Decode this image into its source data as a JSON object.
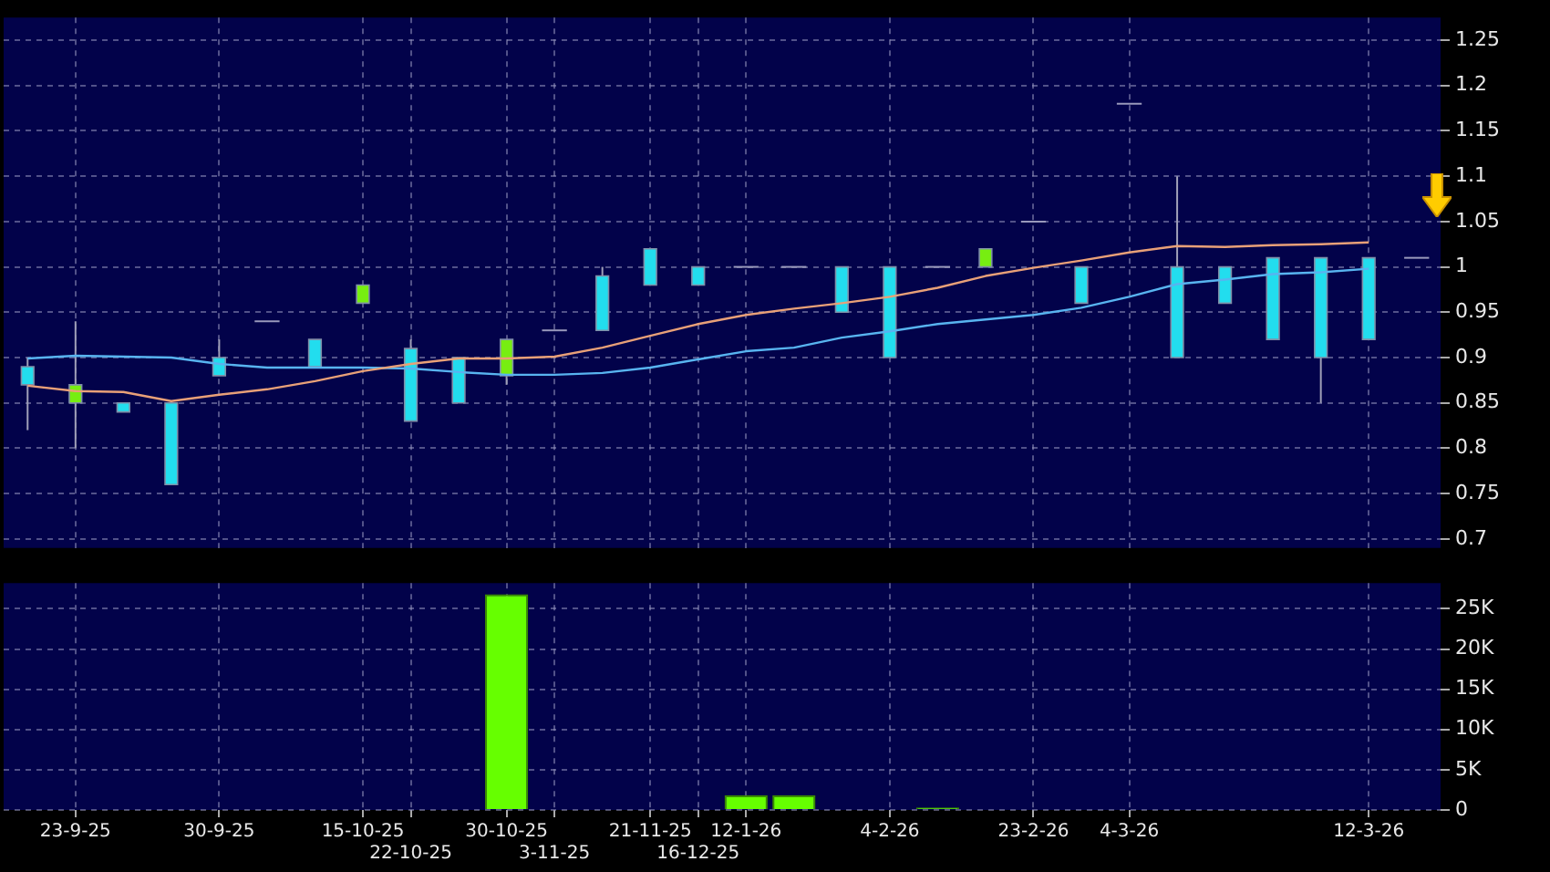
{
  "chart_data": [
    {
      "type": "candlestick",
      "categories": [
        null,
        null,
        null,
        null,
        null,
        null,
        null,
        null,
        null,
        null,
        null,
        null,
        null,
        null,
        null,
        null,
        null,
        null,
        null,
        null,
        null,
        null,
        null,
        null,
        null,
        null,
        null,
        null,
        null,
        null
      ],
      "ohlc": [
        [
          0.89,
          0.9,
          0.82,
          0.87
        ],
        [
          0.85,
          0.94,
          0.8,
          0.87
        ],
        [
          0.85,
          0.85,
          0.84,
          0.84
        ],
        [
          0.85,
          0.85,
          0.76,
          0.76
        ],
        [
          0.9,
          0.92,
          0.88,
          0.88
        ],
        [
          0.94,
          0.94,
          0.94,
          0.94
        ],
        [
          0.92,
          0.92,
          0.89,
          0.89
        ],
        [
          0.96,
          0.98,
          0.96,
          0.98
        ],
        [
          0.91,
          0.92,
          0.83,
          0.83
        ],
        [
          0.9,
          0.9,
          0.85,
          0.85
        ],
        [
          0.88,
          0.92,
          0.87,
          0.92
        ],
        [
          0.93,
          0.93,
          0.93,
          0.93
        ],
        [
          0.99,
          1.0,
          0.93,
          0.93
        ],
        [
          1.02,
          1.02,
          0.98,
          0.98
        ],
        [
          1.0,
          1.0,
          0.98,
          0.98
        ],
        [
          1.0,
          1.0,
          1.0,
          1.0
        ],
        [
          1.0,
          1.0,
          1.0,
          1.0
        ],
        [
          1.0,
          1.0,
          0.95,
          0.95
        ],
        [
          1.0,
          1.0,
          0.9,
          0.9
        ],
        [
          1.0,
          1.0,
          1.0,
          1.0
        ],
        [
          1.0,
          1.02,
          1.0,
          1.02
        ],
        [
          1.05,
          1.05,
          1.05,
          1.05
        ],
        [
          1.0,
          1.0,
          0.96,
          0.96
        ],
        [
          1.18,
          1.18,
          1.18,
          1.18
        ],
        [
          1.0,
          1.1,
          0.9,
          0.9
        ],
        [
          1.0,
          1.0,
          0.96,
          0.96
        ],
        [
          1.01,
          1.01,
          0.92,
          0.92
        ],
        [
          1.01,
          1.01,
          0.85,
          0.9
        ],
        [
          1.01,
          1.01,
          0.92,
          0.92
        ],
        [
          1.01,
          1.01,
          1.01,
          1.01
        ]
      ],
      "colors": [
        "#22ddee",
        "#77ee11",
        "#22ddee",
        "#22ddee",
        "#22ddee",
        "#9999bb",
        "#22ddee",
        "#77ee11",
        "#22ddee",
        "#22ddee",
        "#77ee11",
        "#9999bb",
        "#22ddee",
        "#22ddee",
        "#22ddee",
        "#9999bb",
        "#9999bb",
        "#22ddee",
        "#22ddee",
        "#9999bb",
        "#77ee11",
        "#9999bb",
        "#22ddee",
        "#9999bb",
        "#22ddee",
        "#22ddee",
        "#22ddee",
        "#22ddee",
        "#22ddee",
        "#9999bb"
      ],
      "series": [
        {
          "type": "line",
          "color": "#e8a078",
          "values": [
            0.869,
            0.863,
            0.862,
            0.852,
            0.859,
            0.865,
            0.874,
            0.885,
            0.893,
            0.899,
            0.899,
            0.901,
            0.911,
            0.924,
            0.937,
            0.947,
            0.954,
            0.96,
            0.967,
            0.977,
            0.99,
            0.999,
            1.007,
            1.016,
            1.023,
            1.022,
            1.024,
            1.025,
            1.027,
            null
          ]
        },
        {
          "type": "line",
          "color": "#58b4f0",
          "values": [
            0.899,
            0.902,
            0.901,
            0.9,
            0.893,
            0.889,
            0.889,
            0.889,
            0.888,
            0.884,
            0.881,
            0.881,
            0.883,
            0.889,
            0.898,
            0.907,
            0.911,
            0.922,
            0.929,
            0.937,
            0.942,
            0.947,
            0.955,
            0.967,
            0.981,
            0.986,
            0.992,
            0.994,
            0.998,
            null
          ]
        }
      ],
      "ylim": [
        0.69,
        1.275
      ],
      "yticks": [
        0.7,
        0.75,
        0.8,
        0.85,
        0.9,
        0.95,
        1,
        1.05,
        1.1,
        1.15,
        1.2,
        1.25
      ],
      "grid": true,
      "tick_labels": "y"
    },
    {
      "type": "bar",
      "categories": [
        null,
        "23-9-25",
        null,
        null,
        "30-9-25",
        null,
        null,
        "15-10-25",
        "22-10-25",
        null,
        "30-10-25",
        "3-11-25",
        null,
        "21-11-25",
        "16-12-25",
        "12-1-26",
        null,
        null,
        "4-2-26",
        null,
        null,
        "23-2-26",
        null,
        "4-3-26",
        null,
        null,
        null,
        null,
        "12-3-26",
        null
      ],
      "values": [
        0,
        100,
        0,
        0,
        0,
        0,
        0,
        0,
        100,
        0,
        26800,
        0,
        0,
        100,
        0,
        1800,
        1800,
        0,
        0,
        300,
        0,
        0,
        100,
        0,
        0,
        0,
        0,
        0,
        0,
        0
      ],
      "color": "#66ff00",
      "ylim": [
        0,
        28200
      ],
      "yticks": [
        0,
        {
          "value": 5000,
          "label": "5K"
        },
        {
          "value": 10000,
          "label": "10K"
        },
        {
          "value": 15000,
          "label": "15K"
        },
        {
          "value": 20000,
          "label": "20K"
        },
        {
          "value": 25000,
          "label": "25K"
        }
      ],
      "grid": true
    }
  ]
}
